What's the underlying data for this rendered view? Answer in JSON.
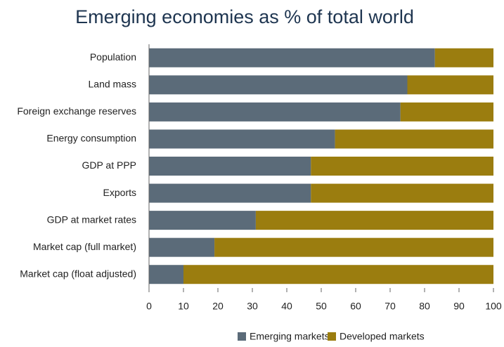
{
  "chart_data": {
    "type": "stacked-barh",
    "title": "Emerging economies as % of total world",
    "categories": [
      "Population",
      "Land mass",
      "Foreign exchange reserves",
      "Energy  consumption",
      "GDP at PPP",
      "Exports",
      "GDP at market rates",
      "Market cap (full market)",
      "Market cap (float adjusted)"
    ],
    "series": [
      {
        "name": "Emerging markets",
        "color": "#5b6b79",
        "values": [
          83,
          75,
          73,
          54,
          47,
          47,
          31,
          19,
          10
        ]
      },
      {
        "name": "Developed markets",
        "color": "#9b7d0f",
        "values": [
          17,
          25,
          27,
          46,
          53,
          53,
          69,
          81,
          90
        ]
      }
    ],
    "xlim": [
      0,
      100
    ],
    "xticks": [
      0,
      10,
      20,
      30,
      40,
      50,
      60,
      70,
      80,
      90,
      100
    ],
    "legend": "bottom"
  }
}
